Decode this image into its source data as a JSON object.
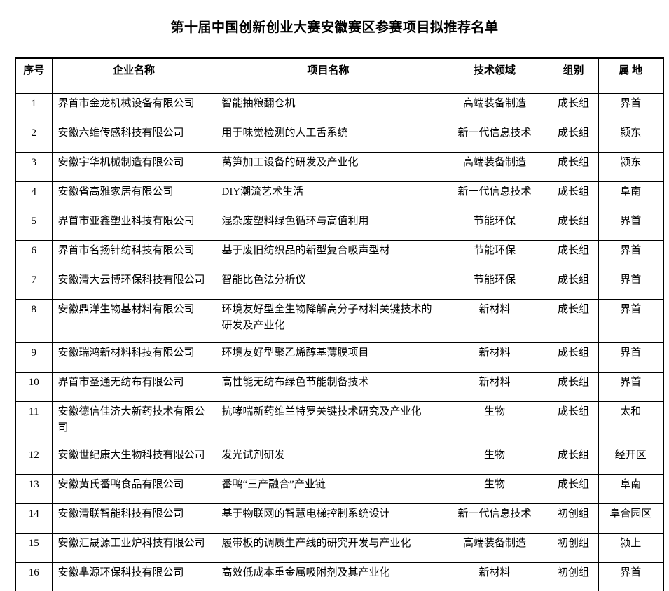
{
  "title": "第十届中国创新创业大赛安徽赛区参赛项目拟推荐名单",
  "table": {
    "headers": [
      "序号",
      "企业名称",
      "项目名称",
      "技术领域",
      "组别",
      "属 地"
    ],
    "rows": [
      {
        "no": "1",
        "company": "界首市金龙机械设备有限公司",
        "project": "智能抽粮翻仓机",
        "field": "高端装备制造",
        "group": "成长组",
        "location": "界首"
      },
      {
        "no": "2",
        "company": "安徽六维传感科技有限公司",
        "project": "用于味觉检测的人工舌系统",
        "field": "新一代信息技术",
        "group": "成长组",
        "location": "颍东"
      },
      {
        "no": "3",
        "company": "安徽宇华机械制造有限公司",
        "project": "莴笋加工设备的研发及产业化",
        "field": "高端装备制造",
        "group": "成长组",
        "location": "颍东"
      },
      {
        "no": "4",
        "company": "安徽省高雅家居有限公司",
        "project": "DIY潮流艺术生活",
        "field": "新一代信息技术",
        "group": "成长组",
        "location": "阜南"
      },
      {
        "no": "5",
        "company": "界首市亚鑫塑业科技有限公司",
        "project": "混杂废塑料绿色循环与高值利用",
        "field": "节能环保",
        "group": "成长组",
        "location": "界首"
      },
      {
        "no": "6",
        "company": "界首市名扬针纺科技有限公司",
        "project": "基于废旧纺织品的新型复合吸声型材",
        "field": "节能环保",
        "group": "成长组",
        "location": "界首"
      },
      {
        "no": "7",
        "company": "安徽清大云博环保科技有限公司",
        "project": "智能比色法分析仪",
        "field": "节能环保",
        "group": "成长组",
        "location": "界首"
      },
      {
        "no": "8",
        "company": "安徽鼎洋生物基材料有限公司",
        "project": "环境友好型全生物降解高分子材料关键技术的研发及产业化",
        "field": "新材料",
        "group": "成长组",
        "location": "界首"
      },
      {
        "no": "9",
        "company": "安徽瑞鸿新材料科技有限公司",
        "project": "环境友好型聚乙烯醇基薄膜项目",
        "field": "新材料",
        "group": "成长组",
        "location": "界首"
      },
      {
        "no": "10",
        "company": "界首市圣通无纺布有限公司",
        "project": "高性能无纺布绿色节能制备技术",
        "field": "新材料",
        "group": "成长组",
        "location": "界首"
      },
      {
        "no": "11",
        "company": "安徽德信佳济大新药技术有限公司",
        "project": "抗哮喘新药维兰特罗关键技术研究及产业化",
        "field": "生物",
        "group": "成长组",
        "location": "太和"
      },
      {
        "no": "12",
        "company": "安徽世纪康大生物科技有限公司",
        "project": "发光试剂研发",
        "field": "生物",
        "group": "成长组",
        "location": "经开区"
      },
      {
        "no": "13",
        "company": "安徽黄氏番鸭食品有限公司",
        "project": "番鸭“三产融合”产业链",
        "field": "生物",
        "group": "成长组",
        "location": "阜南"
      },
      {
        "no": "14",
        "company": "安徽清联智能科技有限公司",
        "project": "基于物联网的智慧电梯控制系统设计",
        "field": "新一代信息技术",
        "group": "初创组",
        "location": "阜合园区"
      },
      {
        "no": "15",
        "company": "安徽汇晟源工业炉科技有限公司",
        "project": "履带板的调质生产线的研究开发与产业化",
        "field": "高端装备制造",
        "group": "初创组",
        "location": "颍上"
      },
      {
        "no": "16",
        "company": "安徽芈源环保科技有限公司",
        "project": "高效低成本重金属吸附剂及其产业化",
        "field": "新材料",
        "group": "初创组",
        "location": "界首"
      }
    ]
  }
}
